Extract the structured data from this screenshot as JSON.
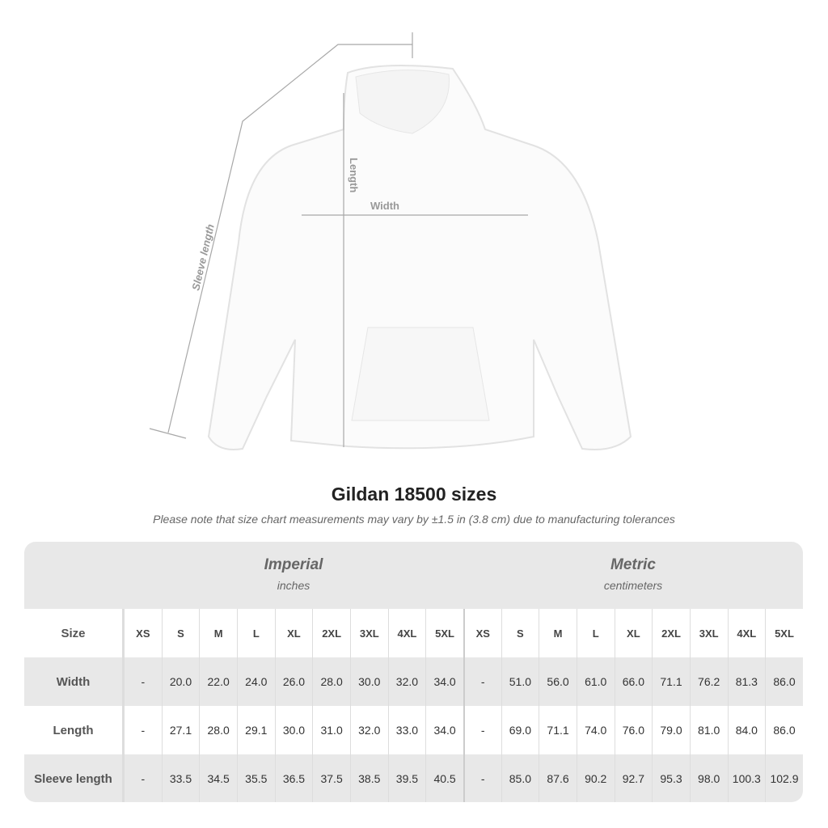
{
  "diagram": {
    "sleeve_label": "Sleeve length",
    "length_label": "Length",
    "width_label": "Width"
  },
  "title": "Gildan 18500 sizes",
  "note": "Please note that size chart measurements may vary by ±1.5 in (3.8 cm) due to manufacturing tolerances",
  "groups": [
    {
      "name": "Imperial",
      "unit": "inches"
    },
    {
      "name": "Metric",
      "unit": "centimeters"
    }
  ],
  "header": {
    "label": "Size",
    "sizes": [
      "XS",
      "S",
      "M",
      "L",
      "XL",
      "2XL",
      "3XL",
      "4XL",
      "5XL",
      "XS",
      "S",
      "M",
      "L",
      "XL",
      "2XL",
      "3XL",
      "4XL",
      "5XL"
    ]
  },
  "rows": [
    {
      "label": "Width",
      "values": [
        "-",
        "20.0",
        "22.0",
        "24.0",
        "26.0",
        "28.0",
        "30.0",
        "32.0",
        "34.0",
        "-",
        "51.0",
        "56.0",
        "61.0",
        "66.0",
        "71.1",
        "76.2",
        "81.3",
        "86.0"
      ]
    },
    {
      "label": "Length",
      "values": [
        "-",
        "27.1",
        "28.0",
        "29.1",
        "30.0",
        "31.0",
        "32.0",
        "33.0",
        "34.0",
        "-",
        "69.0",
        "71.1",
        "74.0",
        "76.0",
        "79.0",
        "81.0",
        "84.0",
        "86.0"
      ]
    },
    {
      "label": "Sleeve length",
      "values": [
        "-",
        "33.5",
        "34.5",
        "35.5",
        "36.5",
        "37.5",
        "38.5",
        "39.5",
        "40.5",
        "-",
        "85.0",
        "87.6",
        "90.2",
        "92.7",
        "95.3",
        "98.0",
        "100.3",
        "102.9"
      ]
    }
  ]
}
